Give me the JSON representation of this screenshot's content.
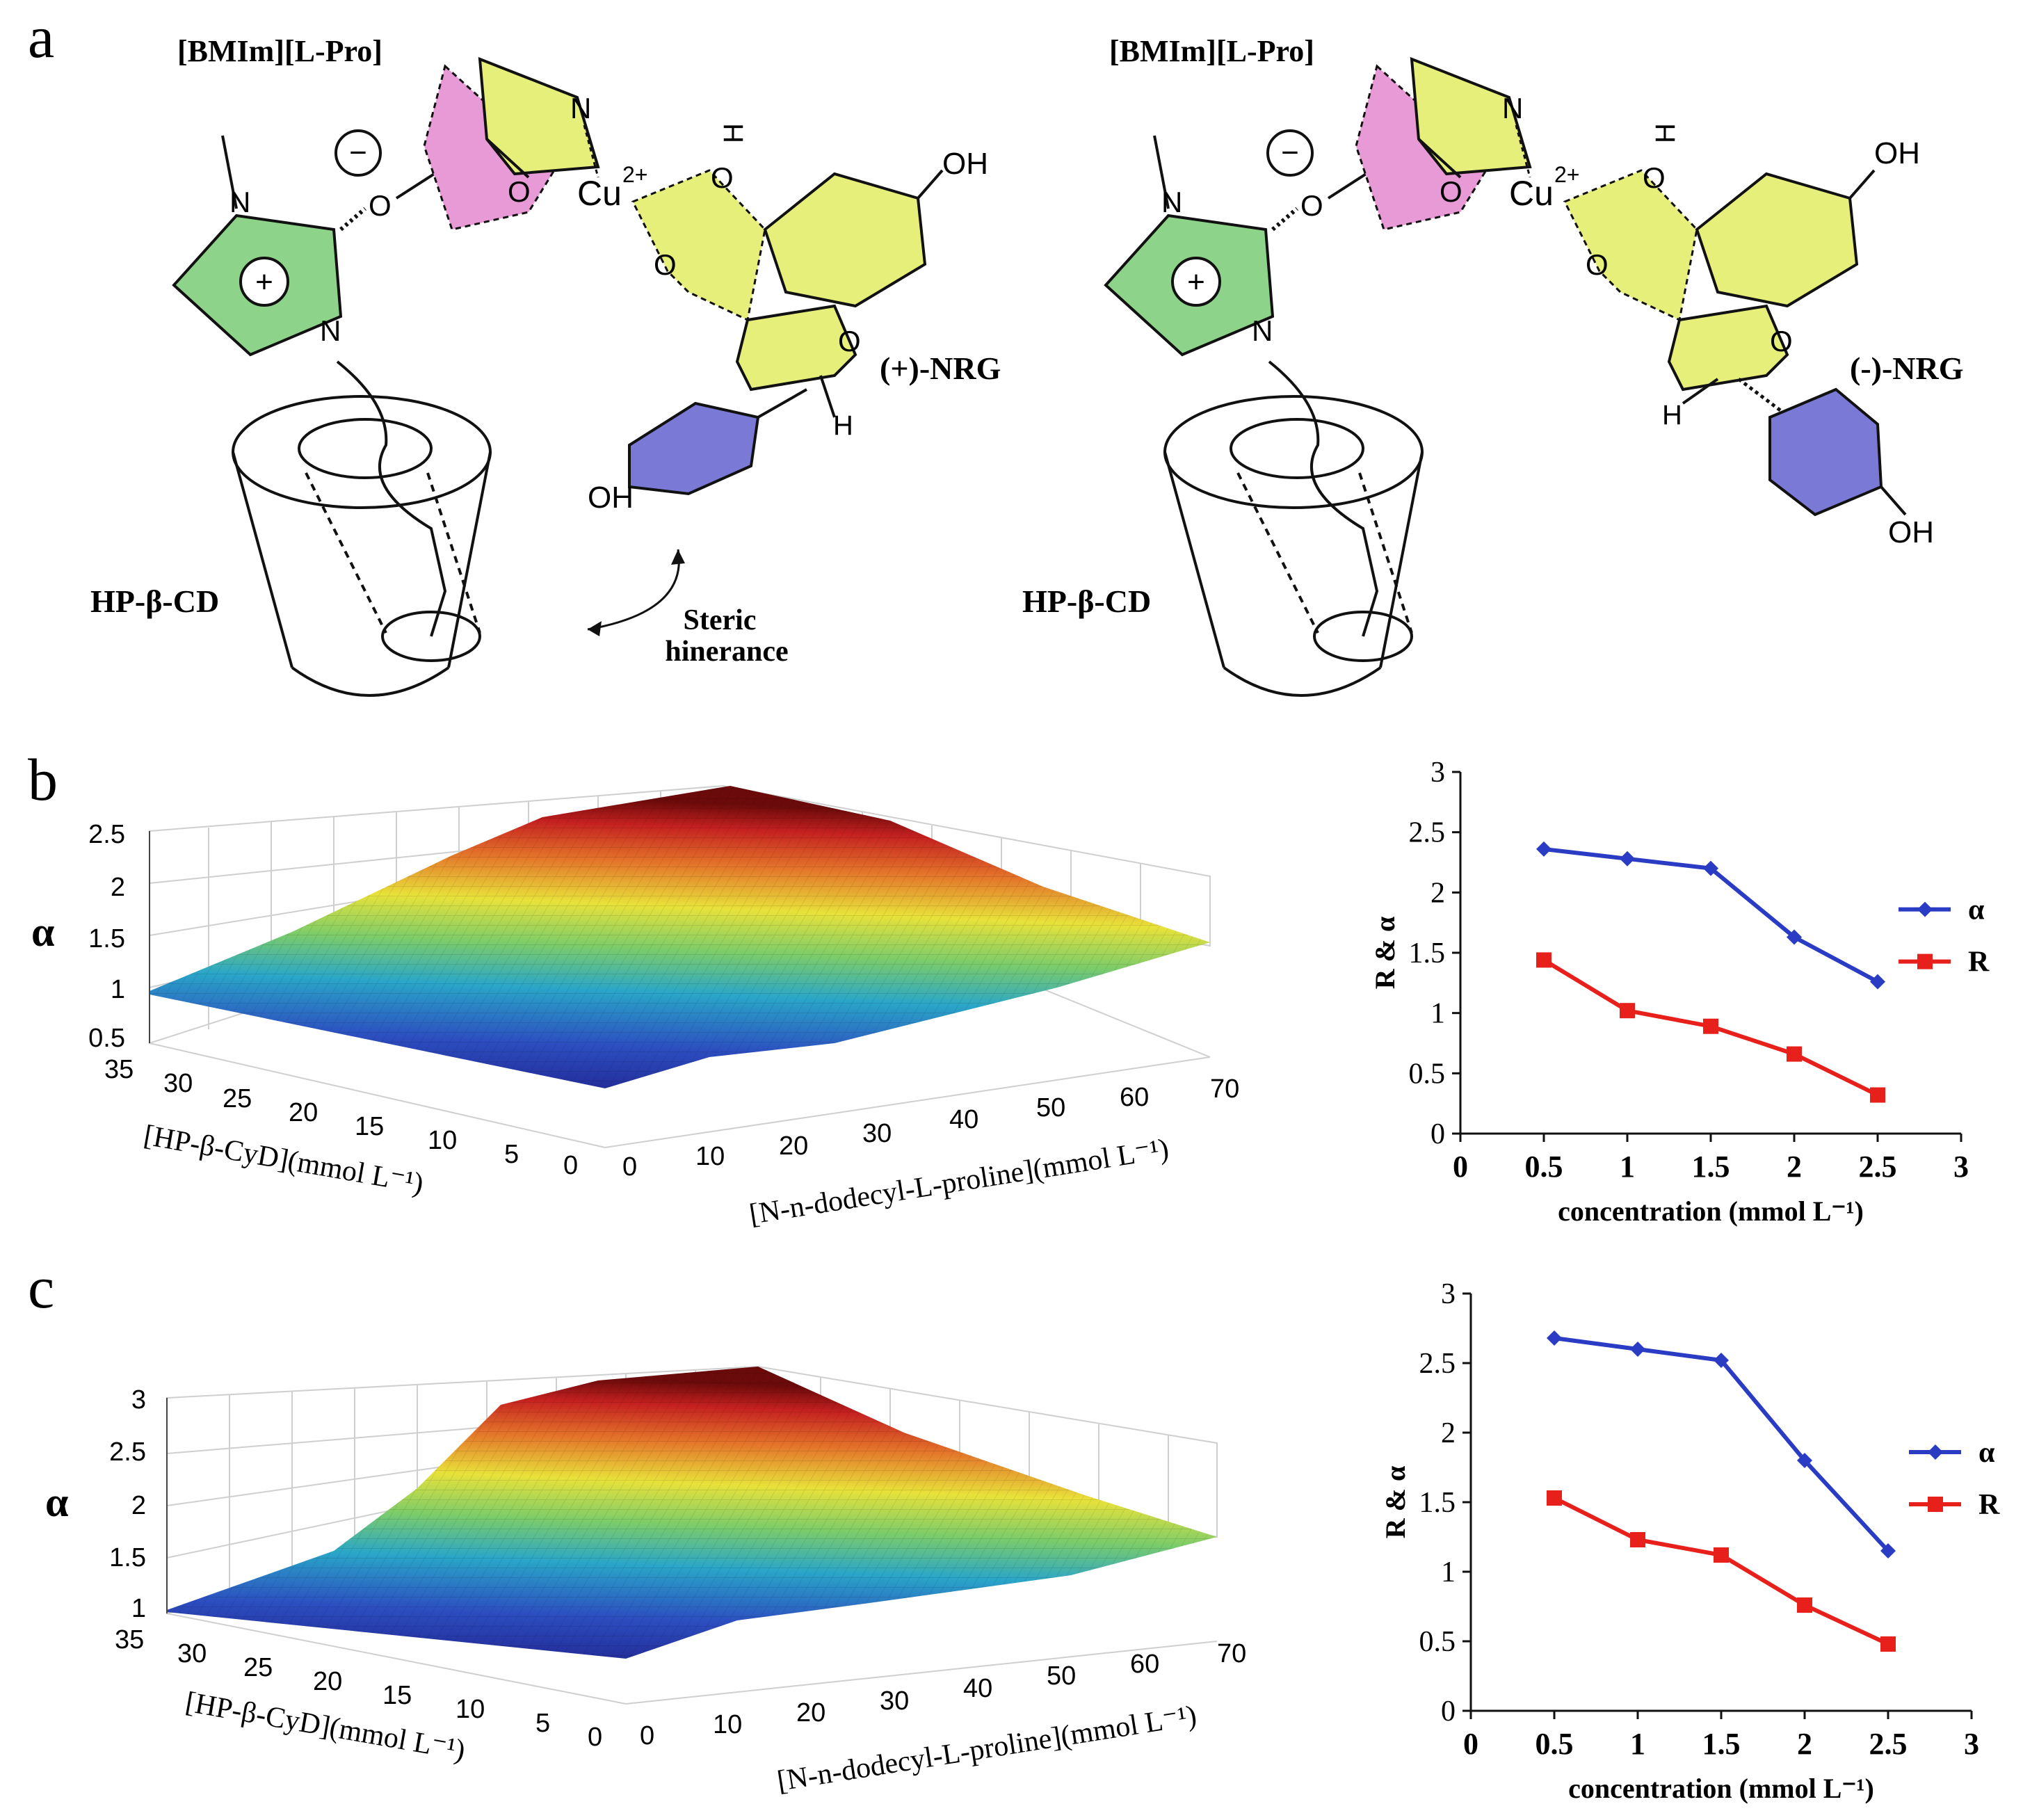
{
  "panel_labels": {
    "a": "a",
    "b": "b",
    "c": "c"
  },
  "scheme_left": {
    "il_label": "[BMIm][L-Pro]",
    "cd_label": "HP-β-CD",
    "enantiomer": "(+)-NRG",
    "steric_line1": "Steric",
    "steric_line2": "hinerance",
    "atoms": {
      "N_top": "N",
      "N_ring1": "N",
      "N_ring2": "N",
      "O_link": "O",
      "O_carb": "O",
      "cu": "Cu",
      "cu_charge": "2+",
      "O_phen": "O",
      "H_phen": "H",
      "O_ket": "O",
      "O_ring": "O",
      "OH_top": "OH",
      "OH_bottom": "OH",
      "H_stereo": "H",
      "minus": "−",
      "plus": "+"
    }
  },
  "scheme_right": {
    "il_label": "[BMIm][L-Pro]",
    "cd_label": "HP-β-CD",
    "enantiomer": "(-)-NRG",
    "atoms": {
      "N_top": "N",
      "N_ring1": "N",
      "N_ring2": "N",
      "O_link": "O",
      "O_carb": "O",
      "cu": "Cu",
      "cu_charge": "2+",
      "O_phen": "O",
      "H_phen": "H",
      "O_ket": "O",
      "O_ring": "O",
      "OH_top": "OH",
      "OH_bottom": "OH",
      "H_stereo": "H",
      "minus": "−",
      "plus": "+"
    }
  },
  "colors": {
    "alpha": "#2b3cc4",
    "R": "#e8201c",
    "green": "#8ed38a",
    "yellow": "#e6ef7a",
    "pink": "#e89ad6",
    "blue": "#7a7ad6"
  },
  "chart_data": [
    {
      "id": "b-surface",
      "type": "surface",
      "zlabel": "α",
      "zticks": [
        "0.5",
        "1",
        "1.5",
        "2",
        "2.5"
      ],
      "zlim": [
        0.5,
        2.5
      ],
      "xlabel": "[HP-β-CyD](mmol L⁻¹)",
      "xticks": [
        "35",
        "30",
        "25",
        "20",
        "15",
        "10",
        "5",
        "0"
      ],
      "ylabel": "[N-n-dodecyl-L-proline](mmol L⁻¹)",
      "yticks": [
        "0",
        "10",
        "20",
        "30",
        "40",
        "50",
        "60",
        "70"
      ],
      "corner_values": {
        "x0_y0": 0.9,
        "x35_y0": 1.0,
        "x0_y70": 1.45,
        "peak": 2.5
      }
    },
    {
      "id": "b-line",
      "type": "line",
      "xlabel": "concentration (mmol L⁻¹)",
      "ylabel": "R & α",
      "xticks": [
        "0",
        "0.5",
        "1",
        "1.5",
        "2",
        "2.5",
        "3"
      ],
      "yticks": [
        "0",
        "0.5",
        "1",
        "1.5",
        "2",
        "2.5",
        "3"
      ],
      "xlim": [
        0,
        3
      ],
      "ylim": [
        0,
        3
      ],
      "x": [
        0.5,
        1,
        1.5,
        2,
        2.5
      ],
      "series": [
        {
          "name": "α",
          "values": [
            2.36,
            2.28,
            2.2,
            1.63,
            1.26
          ]
        },
        {
          "name": "R",
          "values": [
            1.44,
            1.02,
            0.89,
            0.66,
            0.32
          ]
        }
      ],
      "legend": "right"
    },
    {
      "id": "c-surface",
      "type": "surface",
      "zlabel": "α",
      "zticks": [
        "1",
        "1.5",
        "2",
        "2.5",
        "3"
      ],
      "zlim": [
        1,
        3
      ],
      "xlabel": "[HP-β-CyD](mmol L⁻¹)",
      "xticks": [
        "35",
        "30",
        "25",
        "20",
        "15",
        "10",
        "5",
        "0"
      ],
      "ylabel": "[N-n-dodecyl-L-proline](mmol L⁻¹)",
      "yticks": [
        "0",
        "10",
        "20",
        "30",
        "40",
        "50",
        "60",
        "70"
      ],
      "corner_values": {
        "x0_y0": 1.0,
        "x35_y0": 1.0,
        "x0_y70": 1.8,
        "peak": 3.0
      }
    },
    {
      "id": "c-line",
      "type": "line",
      "xlabel": "concentration (mmol L⁻¹)",
      "ylabel": "R & α",
      "xticks": [
        "0",
        "0.5",
        "1",
        "1.5",
        "2",
        "2.5",
        "3"
      ],
      "yticks": [
        "0",
        "0.5",
        "1",
        "1.5",
        "2",
        "2.5",
        "3"
      ],
      "xlim": [
        0,
        3
      ],
      "ylim": [
        0,
        3
      ],
      "x": [
        0.5,
        1,
        1.5,
        2,
        2.5
      ],
      "series": [
        {
          "name": "α",
          "values": [
            2.68,
            2.6,
            2.52,
            1.8,
            1.15
          ]
        },
        {
          "name": "R",
          "values": [
            1.53,
            1.23,
            1.12,
            0.76,
            0.48
          ]
        }
      ],
      "legend": "right"
    }
  ]
}
